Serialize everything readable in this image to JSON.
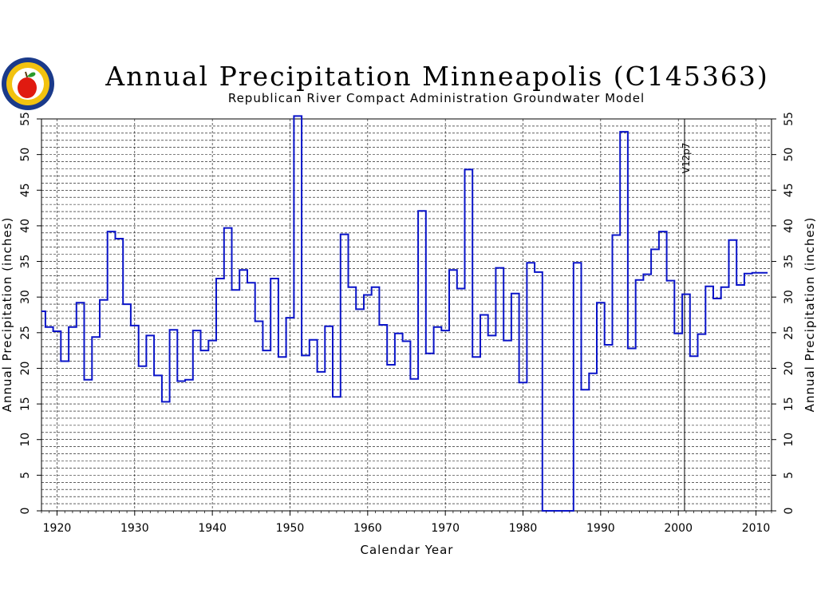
{
  "logo": {
    "name": "rrca-apple-logo",
    "colors": {
      "ring_outer": "#1a3a8a",
      "ring_inner": "#f2c20f",
      "apple": "#e01a10",
      "leaf": "#2a9a2a"
    }
  },
  "chart_data": {
    "type": "line",
    "step": true,
    "title": "Annual Precipitation Minneapolis (C145363)",
    "subtitle": "Republican River Compact Administration Groundwater Model",
    "xlabel": "Calendar Year",
    "ylabel": "Annual Precipitation (inches)",
    "xlim": [
      1918,
      2012
    ],
    "ylim": [
      0,
      55
    ],
    "x_ticks": [
      1920,
      1930,
      1940,
      1950,
      1960,
      1970,
      1980,
      1990,
      2000,
      2010
    ],
    "y_ticks": [
      0,
      5,
      10,
      15,
      20,
      25,
      30,
      35,
      40,
      45,
      50,
      55
    ],
    "grid": {
      "x_major": true,
      "y_minor_step": 1,
      "style": "dashed"
    },
    "annotations": [
      {
        "text": "V12p7",
        "x": 2000.8
      }
    ],
    "series_color": "#0a14c8",
    "series": [
      {
        "x": [
          1918,
          1919,
          1920,
          1921,
          1922,
          1923,
          1924,
          1925,
          1926,
          1927,
          1928,
          1929,
          1930,
          1931,
          1932,
          1933,
          1934,
          1935,
          1936,
          1937,
          1938,
          1939,
          1940,
          1941,
          1942,
          1943,
          1944,
          1945,
          1946,
          1947,
          1948,
          1949,
          1950,
          1951,
          1952,
          1953,
          1954,
          1955,
          1956,
          1957,
          1958,
          1959,
          1960,
          1961,
          1962,
          1963,
          1964,
          1965,
          1966,
          1967,
          1968,
          1969,
          1970,
          1971,
          1972,
          1973,
          1974,
          1975,
          1976,
          1977,
          1978,
          1979,
          1980,
          1981,
          1982,
          1983,
          1984,
          1985,
          1986,
          1987,
          1988,
          1989,
          1990,
          1991,
          1992,
          1993,
          1994,
          1995,
          1996,
          1997,
          1998,
          1999,
          2000,
          2001,
          2002,
          2003,
          2004,
          2005,
          2006,
          2007,
          2008,
          2009,
          2010,
          2011
        ],
        "values": [
          28.0,
          25.8,
          25.2,
          21.0,
          25.8,
          29.2,
          18.4,
          24.4,
          29.6,
          39.2,
          38.2,
          29.0,
          26.0,
          20.3,
          24.6,
          19.0,
          15.3,
          25.4,
          18.2,
          18.4,
          25.3,
          22.5,
          23.9,
          32.6,
          39.7,
          31.0,
          33.8,
          32.0,
          26.6,
          22.5,
          32.6,
          21.6,
          27.1,
          55.4,
          21.8,
          24.0,
          19.5,
          25.9,
          16.0,
          38.8,
          31.4,
          28.3,
          30.3,
          31.4,
          26.1,
          20.5,
          24.9,
          23.8,
          18.5,
          42.1,
          22.1,
          25.8,
          25.3,
          33.8,
          31.2,
          47.9,
          21.6,
          27.5,
          24.6,
          34.1,
          23.9,
          30.5,
          18.0,
          34.8,
          33.5,
          0.0,
          0.0,
          0.0,
          0.0,
          34.8,
          17.0,
          19.3,
          29.2,
          23.3,
          38.7,
          53.2,
          22.8,
          32.4,
          33.2,
          36.7,
          39.2,
          32.3,
          24.9,
          30.4,
          21.7,
          24.8,
          31.5,
          29.8,
          31.4,
          38.0,
          31.7,
          33.3,
          33.4,
          33.4
        ]
      }
    ]
  }
}
